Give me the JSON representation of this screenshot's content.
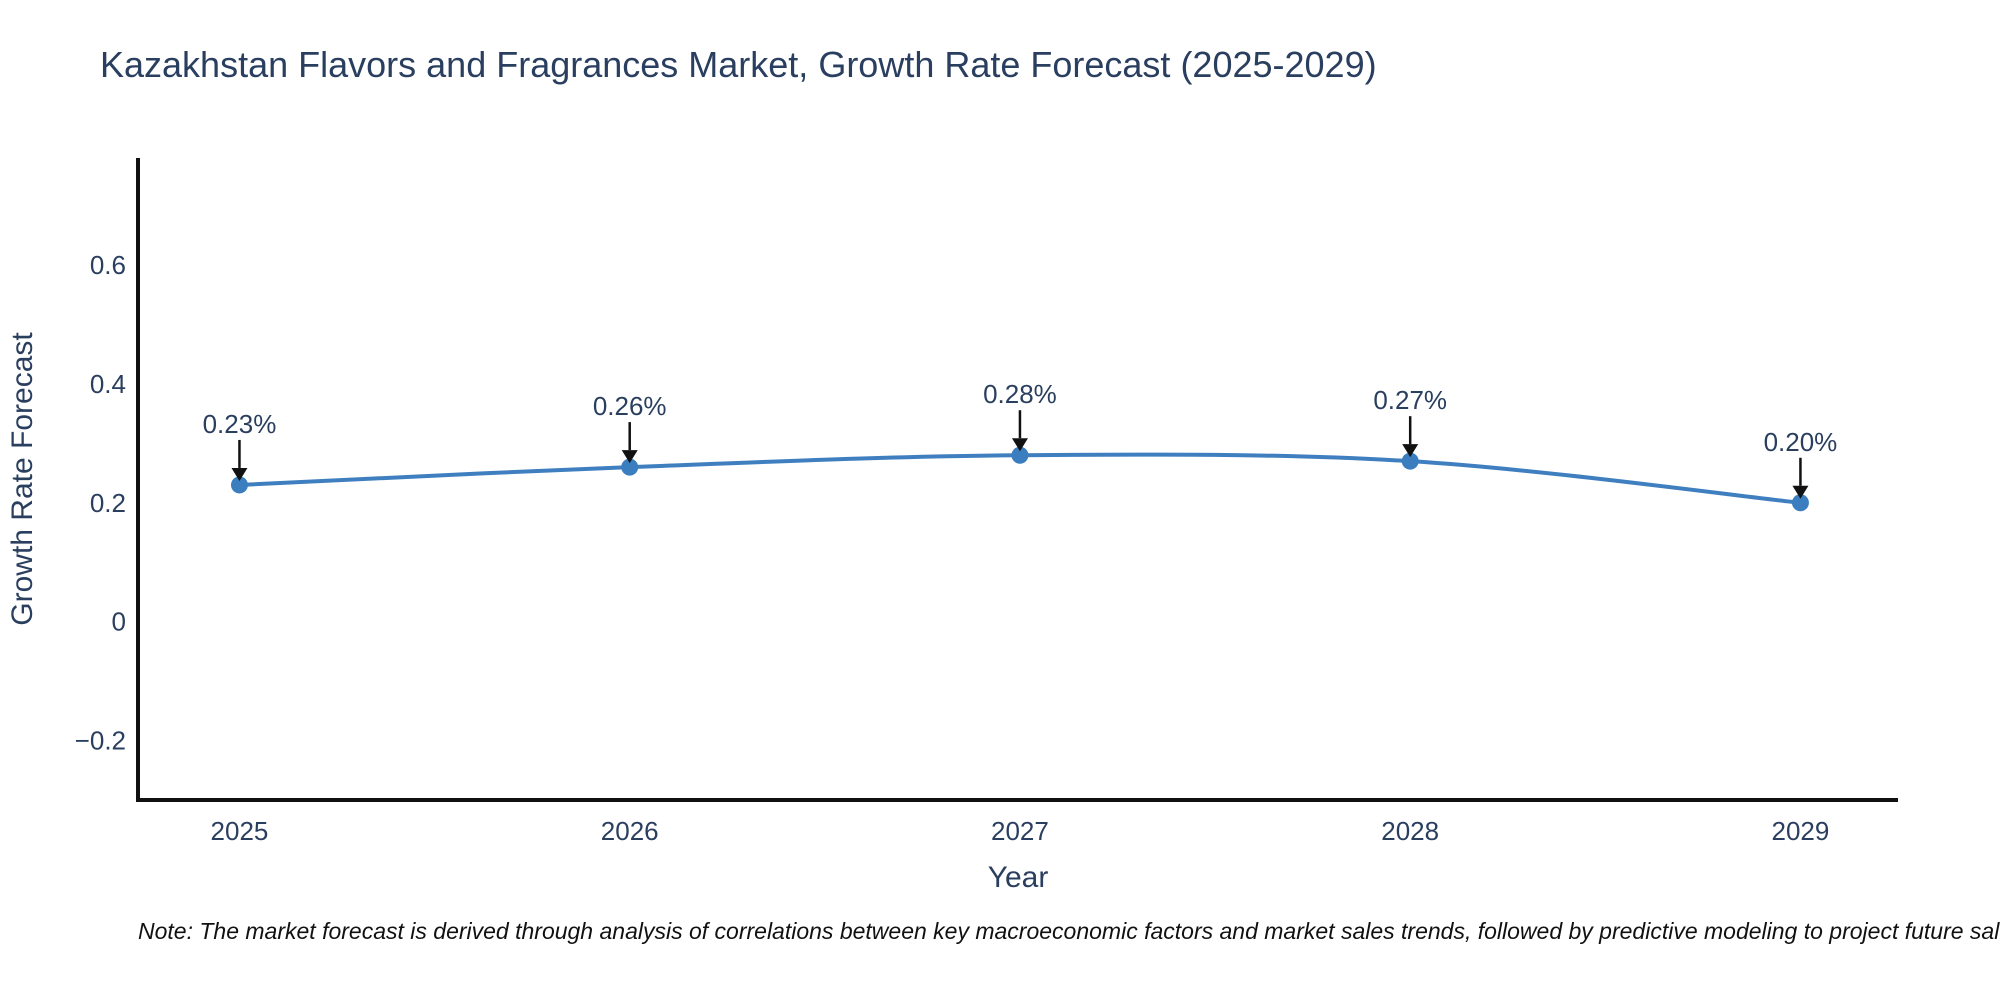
{
  "title": "Kazakhstan Flavors and Fragrances Market, Growth Rate Forecast (2025-2029)",
  "note": "Note: The market forecast is derived through analysis of correlations between key macroeconomic factors and market sales trends, followed by predictive modeling to project future sales.",
  "chart_data": {
    "type": "line",
    "title": "Kazakhstan Flavors and Fragrances Market, Growth Rate Forecast (2025-2029)",
    "x": [
      2025,
      2026,
      2027,
      2028,
      2029
    ],
    "series": [
      {
        "name": "Growth Rate Forecast",
        "values": [
          0.23,
          0.26,
          0.28,
          0.27,
          0.2
        ]
      }
    ],
    "point_labels": [
      "0.23%",
      "0.26%",
      "0.28%",
      "0.27%",
      "0.20%"
    ],
    "xlabel": "Year",
    "ylabel": "Growth Rate Forecast",
    "xtick_labels": [
      "2025",
      "2026",
      "2027",
      "2028",
      "2029"
    ],
    "ytick_values": [
      0.6,
      0.4,
      0.2,
      0,
      -0.2
    ],
    "ytick_labels": [
      "0.6",
      "0.4",
      "0.2",
      "0",
      "−0.2"
    ],
    "xlim": [
      2024.74,
      2029.25
    ],
    "ylim": [
      -0.3,
      0.78
    ],
    "grid": false,
    "legend": "none",
    "colors": {
      "line": "#3f7fbf",
      "marker": "#3a7ebf",
      "axis": "#111111",
      "arrow": "#111111",
      "tick_text": "#2a3f5f",
      "title_text": "#2a3f5f",
      "annotation_text": "#2a3f5f",
      "note_text": "#111111",
      "background": "#ffffff"
    }
  }
}
